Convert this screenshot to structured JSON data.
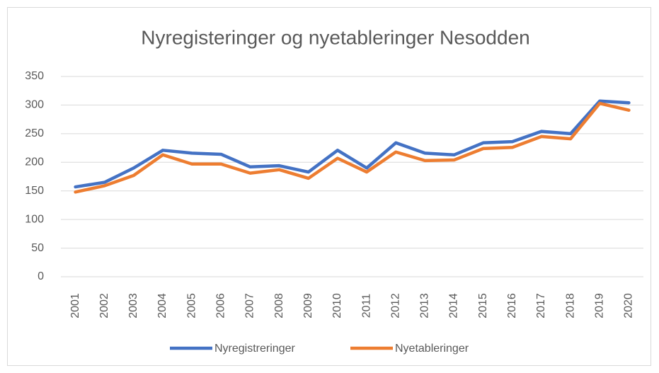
{
  "chart_data": {
    "type": "line",
    "title": "Nyregisteringer og nyetableringer Nesodden",
    "categories": [
      "2001",
      "2002",
      "2003",
      "2004",
      "2005",
      "2006",
      "2007",
      "2008",
      "2009",
      "2010",
      "2011",
      "2012",
      "2013",
      "2014",
      "2015",
      "2016",
      "2017",
      "2018",
      "2019",
      "2020"
    ],
    "series": [
      {
        "name": "Nyregistreringer",
        "color": "#4472c4",
        "values": [
          157,
          165,
          190,
          221,
          216,
          214,
          192,
          194,
          183,
          221,
          190,
          234,
          216,
          213,
          234,
          236,
          254,
          250,
          307,
          304
        ]
      },
      {
        "name": "Nyetableringer",
        "color": "#ed7d31",
        "values": [
          148,
          159,
          177,
          213,
          197,
          197,
          181,
          187,
          172,
          207,
          183,
          218,
          203,
          204,
          224,
          226,
          245,
          241,
          303,
          291
        ]
      }
    ],
    "ylim": [
      0,
      350
    ],
    "yticks": [
      0,
      50,
      100,
      150,
      200,
      250,
      300,
      350
    ],
    "grid": true,
    "legend": "bottom"
  }
}
